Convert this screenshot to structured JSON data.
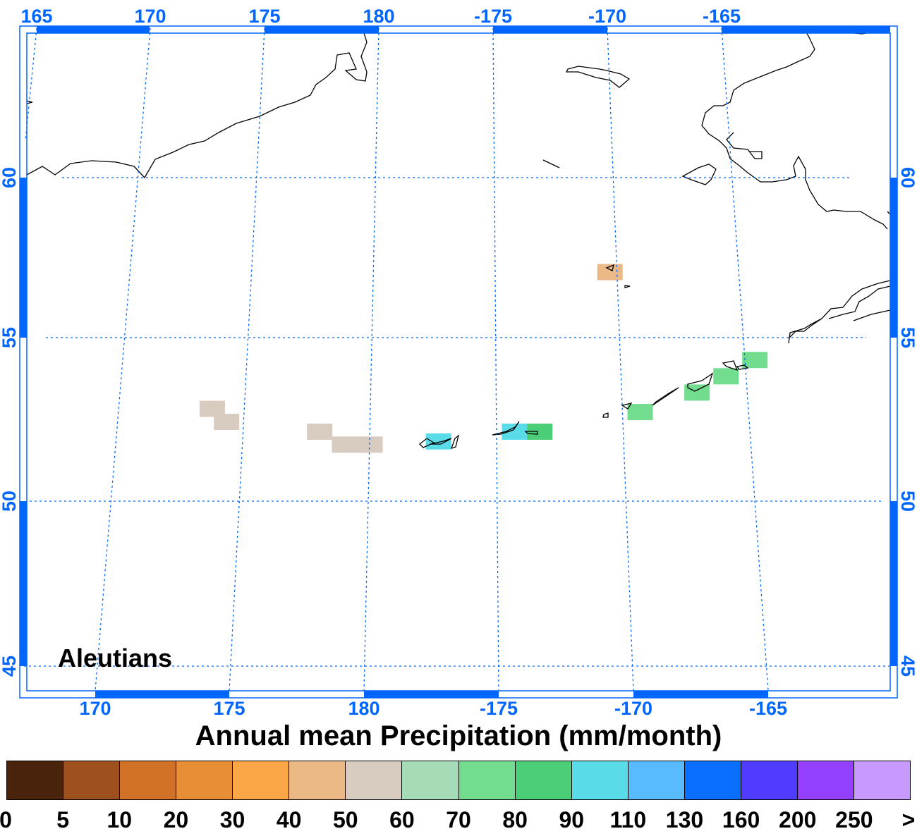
{
  "map": {
    "region_label": "Aleutians",
    "top_lon_labels": [
      "165",
      "170",
      "175",
      "180",
      "-175",
      "-170",
      "-165"
    ],
    "bottom_lon_labels": [
      "170",
      "175",
      "180",
      "-175",
      "-170",
      "-165"
    ],
    "lat_labels": [
      "60",
      "55",
      "50",
      "45"
    ],
    "graticule_color": "#0066ff",
    "coastline_color": "#000000",
    "precip_cells": [
      {
        "lon": 173.7,
        "lat": 52.9,
        "category": "50-60",
        "color": "#d8cbbf"
      },
      {
        "lon": 174.3,
        "lat": 52.5,
        "category": "50-60",
        "color": "#d8cbbf"
      },
      {
        "lon": 178.0,
        "lat": 52.2,
        "category": "50-60",
        "color": "#d8cbbf"
      },
      {
        "lon": 179.0,
        "lat": 51.8,
        "category": "50-60",
        "color": "#d8cbbf"
      },
      {
        "lon": 180.0,
        "lat": 51.8,
        "category": "50-60",
        "color": "#d8cbbf"
      },
      {
        "lon": -177.3,
        "lat": 51.9,
        "category": "90-110",
        "color": "#5adce8"
      },
      {
        "lon": -174.3,
        "lat": 52.2,
        "category": "90-110",
        "color": "#5adce8"
      },
      {
        "lon": -173.3,
        "lat": 52.2,
        "category": "80-90",
        "color": "#4ccd78"
      },
      {
        "lon": -170.3,
        "lat": 57.1,
        "category": "40-50",
        "color": "#ebb986"
      },
      {
        "lon": -169.3,
        "lat": 52.8,
        "category": "70-80",
        "color": "#72dd8f"
      },
      {
        "lon": -167.0,
        "lat": 53.4,
        "category": "70-80",
        "color": "#72dd8f"
      },
      {
        "lon": -165.8,
        "lat": 53.9,
        "category": "70-80",
        "color": "#72dd8f"
      },
      {
        "lon": -164.6,
        "lat": 54.4,
        "category": "70-80",
        "color": "#72dd8f"
      }
    ]
  },
  "title": "Annual mean Precipitation (mm/month)",
  "colorbar": {
    "colors": [
      "#4a230c",
      "#9e511e",
      "#d27128",
      "#e88e36",
      "#fba748",
      "#ebb986",
      "#d8cbbf",
      "#a5dbb7",
      "#72dd8f",
      "#4ccd78",
      "#5adce8",
      "#59bbff",
      "#0a6eff",
      "#4f3cff",
      "#9340ff",
      "#c89aff"
    ],
    "labels": [
      "0",
      "5",
      "10",
      "20",
      "30",
      "40",
      "50",
      "60",
      "70",
      "80",
      "90",
      "110",
      "130",
      "160",
      "200",
      "250",
      ">"
    ]
  }
}
